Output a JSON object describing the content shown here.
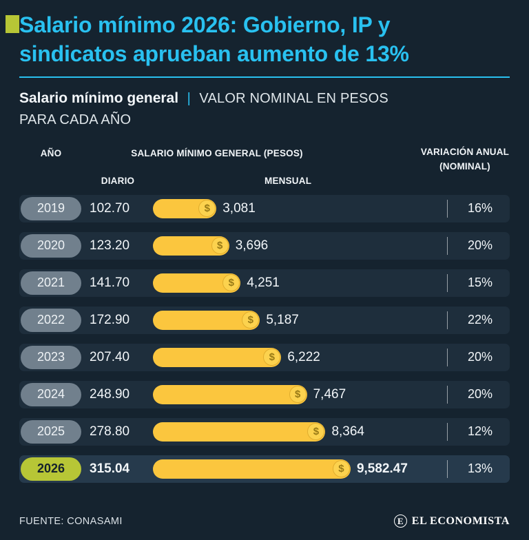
{
  "colors": {
    "background": "#15232f",
    "title_cyan": "#29c1f0",
    "accent_lime": "#b7c636",
    "bar_yellow": "#fbc63e",
    "coin_yellow": "#fcd24e",
    "pill_gray": "#71808d",
    "row_strip": "#1e2e3c",
    "row_strip_highlight": "#263a4c",
    "text_white": "#f2f6f9"
  },
  "header": {
    "title_lines": [
      "Salario mínimo 2026: Gobierno, IP y",
      "sindicatos aprueban aumento de 13%"
    ]
  },
  "subtitle": {
    "bold": "Salario mínimo general",
    "separator": "|",
    "line1_rest": "VALOR NOMINAL EN PESOS",
    "line2": "PARA CADA AÑO"
  },
  "table": {
    "headers": {
      "year": "AÑO",
      "group": "SALARIO MÍNIMO GENERAL (PESOS)",
      "daily": "DIARIO",
      "monthly": "MENSUAL",
      "variation": "VARIACIÓN ANUAL (NOMINAL)"
    }
  },
  "chart_data": {
    "type": "bar",
    "title": "Salario mínimo general | Valor nominal en pesos para cada año",
    "unit": "pesos",
    "bar_max_value": 9582.47,
    "categories": [
      "2019",
      "2020",
      "2021",
      "2022",
      "2023",
      "2024",
      "2025",
      "2026"
    ],
    "series": [
      {
        "name": "DIARIO",
        "values": [
          102.7,
          123.2,
          141.7,
          172.9,
          207.4,
          248.9,
          278.8,
          315.04
        ]
      },
      {
        "name": "MENSUAL",
        "values": [
          3081,
          3696,
          4251,
          5187,
          6222,
          7467,
          8364,
          9582.47
        ]
      },
      {
        "name": "VARIACIÓN ANUAL (NOMINAL) %",
        "values": [
          16,
          20,
          15,
          22,
          20,
          20,
          12,
          13
        ]
      }
    ],
    "rows": [
      {
        "year": "2019",
        "daily": "102.70",
        "monthly": "3,081",
        "monthly_value": 3081,
        "variation": "16%",
        "highlight": false
      },
      {
        "year": "2020",
        "daily": "123.20",
        "monthly": "3,696",
        "monthly_value": 3696,
        "variation": "20%",
        "highlight": false
      },
      {
        "year": "2021",
        "daily": "141.70",
        "monthly": "4,251",
        "monthly_value": 4251,
        "variation": "15%",
        "highlight": false
      },
      {
        "year": "2022",
        "daily": "172.90",
        "monthly": "5,187",
        "monthly_value": 5187,
        "variation": "22%",
        "highlight": false
      },
      {
        "year": "2023",
        "daily": "207.40",
        "monthly": "6,222",
        "monthly_value": 6222,
        "variation": "20%",
        "highlight": false
      },
      {
        "year": "2024",
        "daily": "248.90",
        "monthly": "7,467",
        "monthly_value": 7467,
        "variation": "20%",
        "highlight": false
      },
      {
        "year": "2025",
        "daily": "278.80",
        "monthly": "8,364",
        "monthly_value": 8364,
        "variation": "12%",
        "highlight": false
      },
      {
        "year": "2026",
        "daily": "315.04",
        "monthly": "9,582.47",
        "monthly_value": 9582.47,
        "variation": "13%",
        "highlight": true
      }
    ],
    "legend_position": "none",
    "grid": false
  },
  "footer": {
    "source": "FUENTE: CONASAMI",
    "brand": "EL ECONOMISTA",
    "brand_initial": "E"
  }
}
